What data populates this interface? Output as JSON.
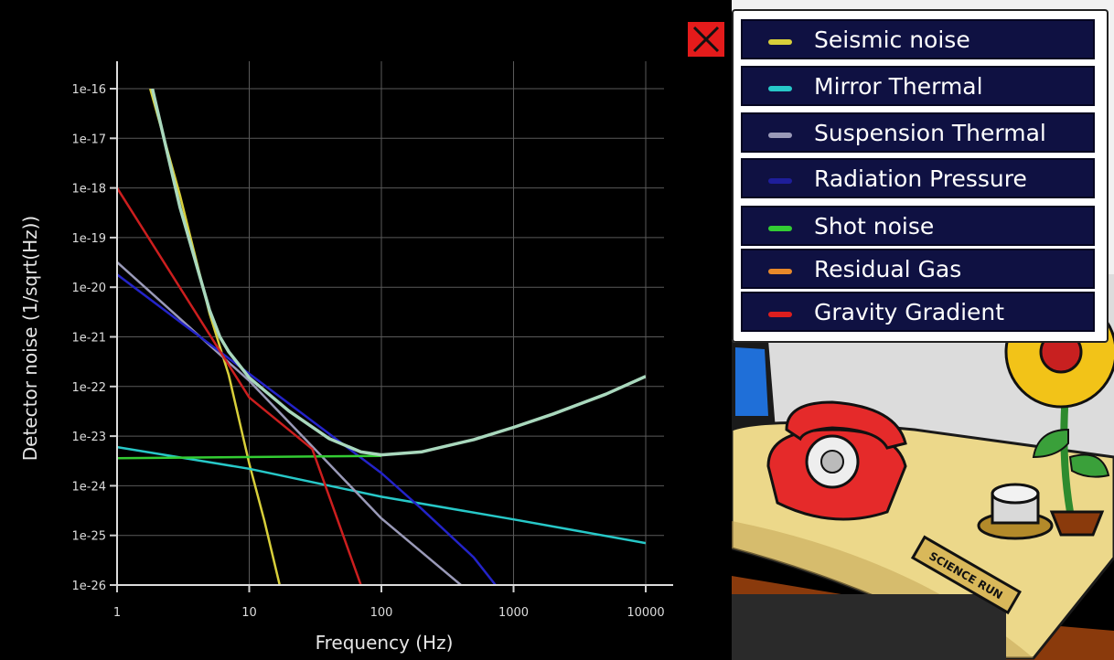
{
  "chart_data": {
    "type": "line",
    "xlabel": "Frequency (Hz)",
    "ylabel": "Detector noise (1/sqrt(Hz))",
    "x_scale": "log",
    "y_scale": "log",
    "xlim": [
      1,
      10000
    ],
    "ylim": [
      1e-26,
      1e-16
    ],
    "grid": true,
    "x_ticks": [
      "1",
      "10",
      "100",
      "1000",
      "10000"
    ],
    "y_ticks": [
      "1e-16",
      "1e-17",
      "1e-18",
      "1e-19",
      "1e-20",
      "1e-21",
      "1e-22",
      "1e-23",
      "1e-24",
      "1e-25",
      "1e-26"
    ],
    "legend_position": "top-right",
    "series": [
      {
        "name": "Seismic noise",
        "color": "#d8cf3a",
        "points": [
          [
            1.78,
            1e-16
          ],
          [
            3,
            7e-19
          ],
          [
            5,
            3e-21
          ],
          [
            7,
            1.7e-22
          ],
          [
            10,
            2.8e-24
          ],
          [
            13,
            2e-25
          ],
          [
            17,
            1e-26
          ]
        ]
      },
      {
        "name": "Mirror Thermal",
        "color": "#27c8c8",
        "points": [
          [
            1,
            6e-24
          ],
          [
            10,
            2.2e-24
          ],
          [
            100,
            6e-25
          ],
          [
            1000,
            2.1e-25
          ],
          [
            10000,
            7e-26
          ]
        ]
      },
      {
        "name": "Suspension Thermal",
        "color": "#9a9ab8",
        "points": [
          [
            1,
            3.2e-20
          ],
          [
            10,
            1.3e-22
          ],
          [
            100,
            2.2e-25
          ],
          [
            400,
            1e-26
          ]
        ]
      },
      {
        "name": "Radiation Pressure",
        "color": "#2323c8",
        "points": [
          [
            1,
            1.8e-20
          ],
          [
            10,
            1.8e-22
          ],
          [
            100,
            1.8e-24
          ],
          [
            200,
            3.5e-25
          ],
          [
            500,
            3.6e-26
          ],
          [
            730,
            1e-26
          ]
        ]
      },
      {
        "name": "Shot noise",
        "color": "#33cc33",
        "points": [
          [
            1,
            3.6e-24
          ],
          [
            100,
            4e-24
          ]
        ]
      },
      {
        "name": "Residual Gas",
        "color": "#e8892a",
        "points": []
      },
      {
        "name": "Gravity Gradient",
        "color": "#cc1e1e",
        "points": [
          [
            1,
            1e-18
          ],
          [
            10,
            6e-23
          ],
          [
            30,
            5.5e-24
          ],
          [
            70,
            1e-26
          ]
        ]
      },
      {
        "name": "",
        "color": "#a9d8bd",
        "points": [
          [
            1.85,
            1e-16
          ],
          [
            3,
            4e-19
          ],
          [
            5,
            3.5e-21
          ],
          [
            6,
            1e-21
          ],
          [
            7,
            5e-22
          ],
          [
            10,
            1.5e-22
          ],
          [
            20,
            3.2e-23
          ],
          [
            40,
            9e-24
          ],
          [
            70,
            4.8e-24
          ],
          [
            100,
            4.2e-24
          ],
          [
            200,
            4.8e-24
          ],
          [
            500,
            8.5e-24
          ],
          [
            1000,
            1.5e-23
          ],
          [
            2000,
            2.8e-23
          ],
          [
            5000,
            7e-23
          ],
          [
            10000,
            1.6e-22
          ]
        ]
      }
    ]
  },
  "legend": {
    "items": [
      {
        "label": "Seismic noise",
        "color": "#d8cf3a"
      },
      {
        "label": "Mirror Thermal",
        "color": "#27c8c8"
      },
      {
        "label": "Suspension Thermal",
        "color": "#9a9ab8"
      },
      {
        "label": "Radiation Pressure",
        "color": "#1e1e9a"
      },
      {
        "label": "Shot noise",
        "color": "#33cc33"
      },
      {
        "label": "Residual Gas",
        "color": "#e8892a"
      },
      {
        "label": "Gravity Gradient",
        "color": "#dd1e1e"
      }
    ]
  },
  "scene": {
    "plaque_text": "SCIENCE RUN"
  }
}
